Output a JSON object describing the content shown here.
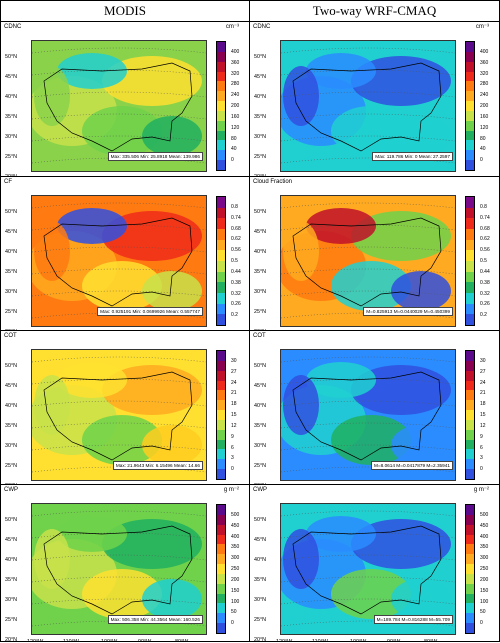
{
  "columns": [
    {
      "title": "MODIS"
    },
    {
      "title": "Two-way WRF-CMAQ"
    }
  ],
  "lat_labels": [
    "50°N",
    "45°N",
    "40°N",
    "35°N",
    "30°N",
    "25°N",
    "20°N"
  ],
  "lon_labels": [
    "120°W",
    "110°W",
    "100°W",
    "90°W",
    "80°W"
  ],
  "rows": [
    {
      "left": {
        "var": "CDNC",
        "unit": "cm⁻³",
        "stats": "Max: 335.506  Min: 25.8918  Mean: 139.986"
      },
      "right": {
        "var": "CDNC",
        "unit": "cm⁻³",
        "stats": "Max: 119.786  Min: 0  Mean: 27.2597"
      },
      "ticks": [
        "400",
        "360",
        "320",
        "280",
        "240",
        "200",
        "160",
        "120",
        "80",
        "40",
        "0"
      ],
      "colors": [
        "#5a0a8a",
        "#8a0050",
        "#c0102a",
        "#f02a1a",
        "#ff7a10",
        "#ffaa20",
        "#ffe030",
        "#c8e24a",
        "#6fd24a",
        "#20b060",
        "#20d0d0",
        "#2a8cff",
        "#3050e0"
      ]
    },
    {
      "left": {
        "var": "CF",
        "unit": "",
        "stats": "Max: 0.925191  Min: 0.0699926  Mean: 0.557747"
      },
      "right": {
        "var": "Cloud Fraction",
        "unit": "",
        "stats": "M=0.825913  M=0.0440029  M=0.450399"
      },
      "ticks": [
        "0.8",
        "0.74",
        "0.68",
        "0.62",
        "0.56",
        "0.5",
        "0.44",
        "0.38",
        "0.32",
        "0.26",
        "0.2"
      ],
      "colors": [
        "#7a0a8a",
        "#c0102a",
        "#f02a1a",
        "#ff7a10",
        "#ffaa20",
        "#ffe030",
        "#c8e24a",
        "#6fd24a",
        "#20b060",
        "#20d0d0",
        "#2a8cff",
        "#3050e0"
      ]
    },
    {
      "left": {
        "var": "COT",
        "unit": "",
        "stats": "Max: 21.9643  Min: 6.15496  Mean: 14.66"
      },
      "right": {
        "var": "COT",
        "unit": "",
        "stats": "M=8.0614  M=0.0417879  M=2.35941"
      },
      "ticks": [
        "30",
        "27",
        "24",
        "21",
        "18",
        "15",
        "12",
        "9",
        "6",
        "3",
        "0"
      ],
      "colors": [
        "#5a0a8a",
        "#8a0050",
        "#c0102a",
        "#f02a1a",
        "#ff7a10",
        "#ffaa20",
        "#ffe030",
        "#c8e24a",
        "#6fd24a",
        "#20b060",
        "#20d0d0",
        "#2a8cff",
        "#3050e0"
      ]
    },
    {
      "left": {
        "var": "CWP",
        "unit": "g m⁻²",
        "stats": "Max: 506.358  Min: 44.3564  Mean: 160.526"
      },
      "right": {
        "var": "CWP",
        "unit": "g m⁻²",
        "stats": "M=189.784  M=0.816288  M=55.709"
      },
      "ticks": [
        "500",
        "450",
        "400",
        "350",
        "300",
        "250",
        "200",
        "150",
        "100",
        "50",
        "0"
      ],
      "colors": [
        "#5a0a8a",
        "#8a0050",
        "#c0102a",
        "#f02a1a",
        "#ff7a10",
        "#ffaa20",
        "#ffe030",
        "#c8e24a",
        "#6fd24a",
        "#20b060",
        "#20d0d0",
        "#2a8cff",
        "#3050e0"
      ]
    }
  ],
  "fields": {
    "modis_cdnc": [
      "#8ad24a",
      "#c8e24a",
      "#ffe030",
      "#6fd24a",
      "#20b060",
      "#20d0d0"
    ],
    "wrf_cdnc": [
      "#20d0d0",
      "#2a8cff",
      "#3050e0",
      "#20d0d0"
    ],
    "modis_cf": [
      "#ff7a10",
      "#ffaa20",
      "#f02a1a",
      "#ffe030",
      "#c8e24a",
      "#3050e0"
    ],
    "wrf_cf": [
      "#ffaa20",
      "#ff7a10",
      "#6fd24a",
      "#20d0d0",
      "#3050e0",
      "#c0102a"
    ],
    "modis_cot": [
      "#ffe030",
      "#c8e24a",
      "#ffaa20",
      "#6fd24a",
      "#ffcc20"
    ],
    "wrf_cot": [
      "#2a8cff",
      "#20d0d0",
      "#3050e0",
      "#20b060"
    ],
    "modis_cwp": [
      "#6fd24a",
      "#c8e24a",
      "#20b060",
      "#ffe030",
      "#20d0d0"
    ],
    "wrf_cwp": [
      "#20d0d0",
      "#2a8cff",
      "#3050e0",
      "#6fd24a"
    ]
  }
}
